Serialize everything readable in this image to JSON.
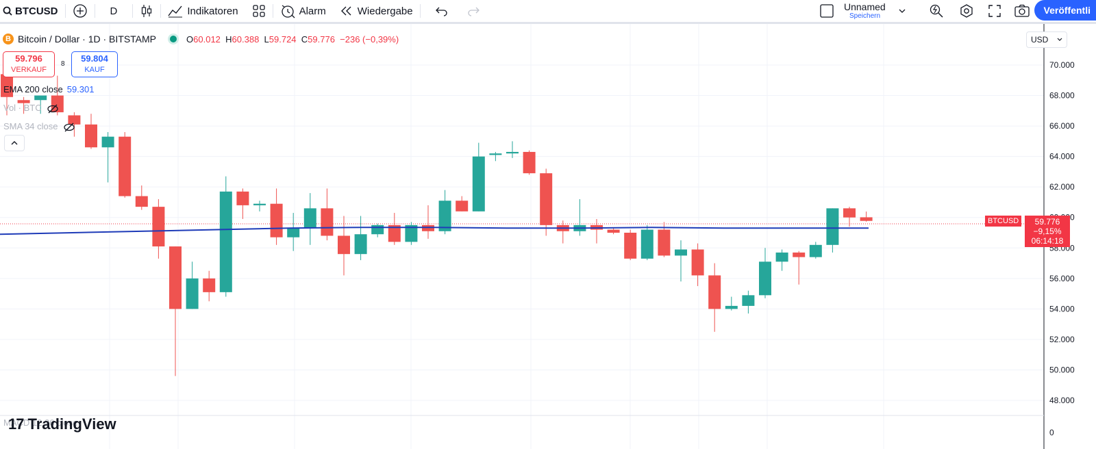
{
  "toolbar": {
    "symbol": "BTCUSD",
    "interval": "D",
    "indicators": "Indikatoren",
    "alert": "Alarm",
    "replay": "Wiedergabe",
    "layout_name": "Unnamed",
    "save": "Speichern",
    "publish": "Veröffentli"
  },
  "legend": {
    "coin": "B",
    "title": "Bitcoin / Dollar · 1D · BITSTAMP",
    "o_label": "O",
    "o": "60.012",
    "h_label": "H",
    "h": "60.388",
    "l_label": "L",
    "l": "59.724",
    "c_label": "C",
    "c": "59.776",
    "change": "−236 (−0,39%)"
  },
  "trade": {
    "sell_price": "59.796",
    "sell_label": "VERKAUF",
    "buy_price": "59.804",
    "buy_label": "KAUF",
    "spread": "8"
  },
  "indicators": {
    "ema_label": "EMA 200 close",
    "ema_value": "59.301",
    "vol_label": "Vol · BTC",
    "sma_label": "SMA 34 close",
    "macd_label": "MACD 12 26 close"
  },
  "price_scale": {
    "currency": "USD",
    "ticks": [
      "70.000",
      "68.000",
      "66.000",
      "64.000",
      "62.000",
      "60.000",
      "58.000",
      "56.000",
      "54.000",
      "52.000",
      "50.000",
      "48.000"
    ],
    "macd_zero": "0",
    "current_symbol": "BTCUSD",
    "current_price": "59.776",
    "current_change": "−9,15%",
    "countdown": "06:14:18"
  },
  "logo": {
    "mark": "17",
    "text": "TradingView"
  },
  "colors": {
    "up": "#26a69a",
    "down": "#ef5350",
    "ema": "#1e3bb8",
    "accent": "#2962ff"
  },
  "chart_data": {
    "type": "candlestick",
    "ylim": [
      47500,
      71000
    ],
    "candles": [
      {
        "o": 69400,
        "h": 69600,
        "l": 66700,
        "c": 67900
      },
      {
        "o": 67700,
        "h": 67900,
        "l": 66800,
        "c": 67500
      },
      {
        "o": 67700,
        "h": 67900,
        "l": 66800,
        "c": 68000
      },
      {
        "o": 68000,
        "h": 69300,
        "l": 66700,
        "c": 66900
      },
      {
        "o": 66700,
        "h": 66900,
        "l": 65300,
        "c": 66100
      },
      {
        "o": 66100,
        "h": 66800,
        "l": 64500,
        "c": 64600
      },
      {
        "o": 64600,
        "h": 65600,
        "l": 62300,
        "c": 65300
      },
      {
        "o": 65300,
        "h": 65600,
        "l": 61300,
        "c": 61400
      },
      {
        "o": 61400,
        "h": 62100,
        "l": 60500,
        "c": 60700
      },
      {
        "o": 60700,
        "h": 61200,
        "l": 57300,
        "c": 58100
      },
      {
        "o": 58100,
        "h": 58100,
        "l": 49600,
        "c": 54000
      },
      {
        "o": 54000,
        "h": 57100,
        "l": 54000,
        "c": 56000
      },
      {
        "o": 56000,
        "h": 56500,
        "l": 54500,
        "c": 55100
      },
      {
        "o": 55100,
        "h": 62700,
        "l": 54800,
        "c": 61700
      },
      {
        "o": 61700,
        "h": 61900,
        "l": 59900,
        "c": 60800
      },
      {
        "o": 60800,
        "h": 61100,
        "l": 60400,
        "c": 60900
      },
      {
        "o": 60900,
        "h": 61900,
        "l": 58200,
        "c": 58700
      },
      {
        "o": 58700,
        "h": 60300,
        "l": 57800,
        "c": 59300
      },
      {
        "o": 59300,
        "h": 61600,
        "l": 58200,
        "c": 60600
      },
      {
        "o": 60600,
        "h": 61900,
        "l": 58500,
        "c": 58800
      },
      {
        "o": 58800,
        "h": 60100,
        "l": 56200,
        "c": 57600
      },
      {
        "o": 57600,
        "h": 60100,
        "l": 57200,
        "c": 58900
      },
      {
        "o": 58900,
        "h": 59600,
        "l": 58700,
        "c": 59500
      },
      {
        "o": 59500,
        "h": 60300,
        "l": 58200,
        "c": 58400
      },
      {
        "o": 58400,
        "h": 59700,
        "l": 58200,
        "c": 59500
      },
      {
        "o": 59500,
        "h": 60800,
        "l": 58600,
        "c": 59100
      },
      {
        "o": 59100,
        "h": 61800,
        "l": 58900,
        "c": 61100
      },
      {
        "o": 61100,
        "h": 61400,
        "l": 60400,
        "c": 60400
      },
      {
        "o": 60400,
        "h": 64900,
        "l": 60400,
        "c": 64000
      },
      {
        "o": 64100,
        "h": 64300,
        "l": 63700,
        "c": 64200
      },
      {
        "o": 64200,
        "h": 65000,
        "l": 63900,
        "c": 64300
      },
      {
        "o": 64300,
        "h": 64400,
        "l": 62800,
        "c": 62900
      },
      {
        "o": 62900,
        "h": 63200,
        "l": 58800,
        "c": 59500
      },
      {
        "o": 59500,
        "h": 59800,
        "l": 58300,
        "c": 59100
      },
      {
        "o": 59100,
        "h": 61200,
        "l": 58800,
        "c": 59500
      },
      {
        "o": 59500,
        "h": 59900,
        "l": 58300,
        "c": 59200
      },
      {
        "o": 59200,
        "h": 59300,
        "l": 58900,
        "c": 59000
      },
      {
        "o": 59000,
        "h": 59200,
        "l": 57200,
        "c": 57300
      },
      {
        "o": 57300,
        "h": 59500,
        "l": 57200,
        "c": 59200
      },
      {
        "o": 59200,
        "h": 59700,
        "l": 57400,
        "c": 57500
      },
      {
        "o": 57500,
        "h": 58500,
        "l": 55800,
        "c": 57900
      },
      {
        "o": 57900,
        "h": 58300,
        "l": 55500,
        "c": 56200
      },
      {
        "o": 56200,
        "h": 57000,
        "l": 52500,
        "c": 54000
      },
      {
        "o": 54000,
        "h": 54800,
        "l": 53900,
        "c": 54200
      },
      {
        "o": 54200,
        "h": 55200,
        "l": 53700,
        "c": 54900
      },
      {
        "o": 54900,
        "h": 58000,
        "l": 54700,
        "c": 57100
      },
      {
        "o": 57100,
        "h": 57900,
        "l": 56500,
        "c": 57700
      },
      {
        "o": 57700,
        "h": 57800,
        "l": 55600,
        "c": 57400
      },
      {
        "o": 57400,
        "h": 58400,
        "l": 57300,
        "c": 58200
      },
      {
        "o": 58200,
        "h": 60600,
        "l": 57700,
        "c": 60600
      },
      {
        "o": 60600,
        "h": 60700,
        "l": 59400,
        "c": 60000
      },
      {
        "o": 60012,
        "h": 60388,
        "l": 59724,
        "c": 59776
      }
    ],
    "ema": [
      58900,
      59000,
      59100,
      59200,
      59300,
      59350,
      59350,
      59300,
      59300,
      59350,
      59300,
      59300,
      59300
    ]
  }
}
